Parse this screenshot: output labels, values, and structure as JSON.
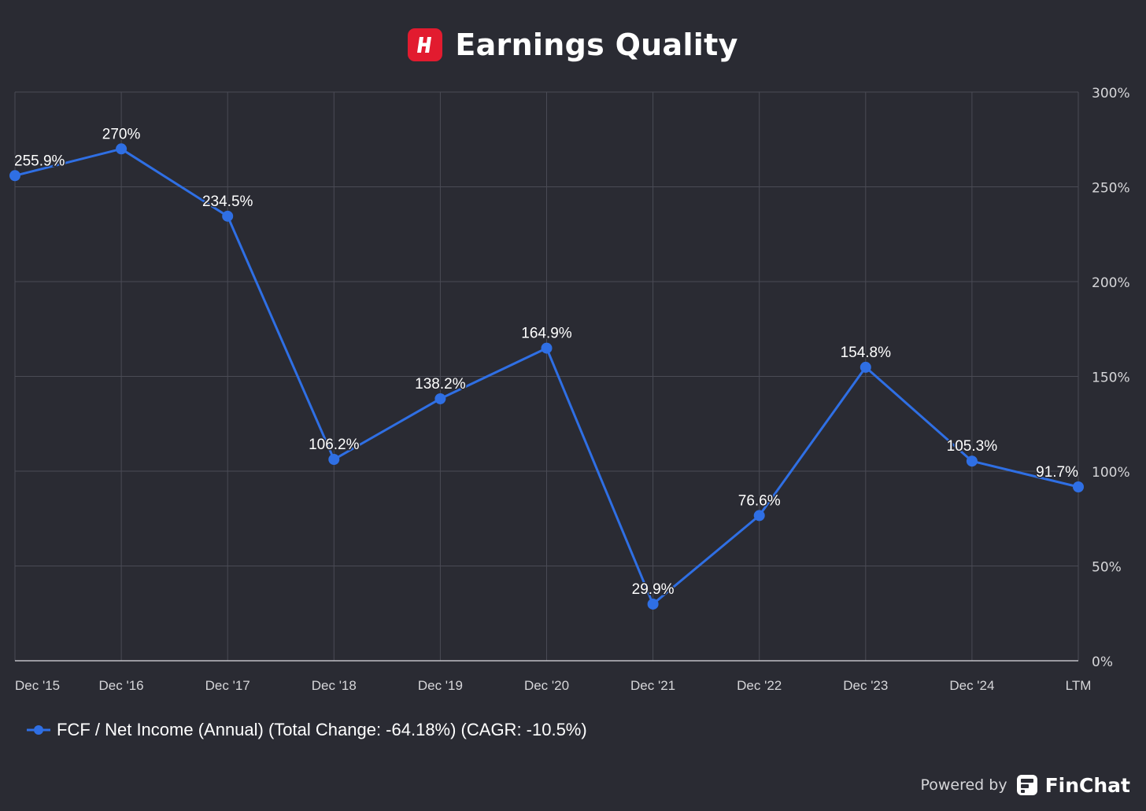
{
  "header": {
    "title": "Earnings Quality",
    "logo_letter": "H"
  },
  "colors": {
    "background": "#2a2b33",
    "series": "#2f6fe4",
    "grid": "#4a4b55",
    "logo": "#e21b2f"
  },
  "chart_data": {
    "type": "line",
    "categories": [
      "Dec '15",
      "Dec '16",
      "Dec '17",
      "Dec '18",
      "Dec '19",
      "Dec '20",
      "Dec '21",
      "Dec '22",
      "Dec '23",
      "Dec '24",
      "LTM"
    ],
    "series": [
      {
        "name": "FCF / Net Income (Annual)",
        "values": [
          255.9,
          270,
          234.5,
          106.2,
          138.2,
          164.9,
          29.9,
          76.6,
          154.8,
          105.3,
          91.7
        ],
        "labels": [
          "255.9%",
          "270%",
          "234.5%",
          "106.2%",
          "138.2%",
          "164.9%",
          "29.9%",
          "76.6%",
          "154.8%",
          "105.3%",
          "91.7%"
        ]
      }
    ],
    "y_ticks": [
      0,
      50,
      100,
      150,
      200,
      250,
      300
    ],
    "y_tick_labels": [
      "0%",
      "50%",
      "100%",
      "150%",
      "200%",
      "250%",
      "300%"
    ],
    "ylim": [
      0,
      300
    ],
    "y_axis_side": "right",
    "grid": true,
    "legend_text": "FCF / Net Income (Annual) (Total Change: -64.18%) (CAGR: -10.5%)",
    "legend_position": "bottom-left"
  },
  "footer": {
    "powered_by": "Powered by",
    "brand": "FinChat"
  }
}
